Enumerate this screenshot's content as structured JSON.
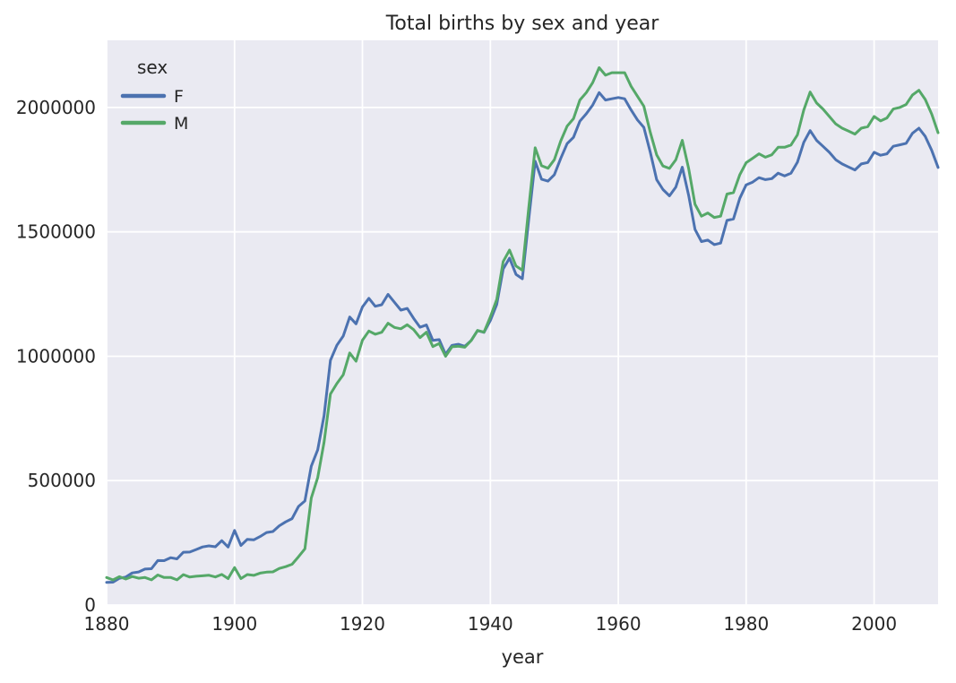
{
  "chart_data": {
    "type": "line",
    "title": "Total births by sex and year",
    "xlabel": "year",
    "ylabel": "",
    "legend": {
      "title": "sex",
      "position": "upper left"
    },
    "grid": true,
    "xlim": [
      1880,
      2010
    ],
    "ylim": [
      0,
      2270000
    ],
    "xticks": [
      1880,
      1900,
      1920,
      1940,
      1960,
      1980,
      2000
    ],
    "yticks": [
      0,
      500000,
      1000000,
      1500000,
      2000000
    ],
    "style": {
      "plot_bg": "#eaeaf2",
      "grid_color": "#ffffff",
      "fig_bg": "#ffffff",
      "text_color": "#262626",
      "f_color": "#4c72b0",
      "m_color": "#55a868"
    },
    "x": [
      1880,
      1881,
      1882,
      1883,
      1884,
      1885,
      1886,
      1887,
      1888,
      1889,
      1890,
      1891,
      1892,
      1893,
      1894,
      1895,
      1896,
      1897,
      1898,
      1899,
      1900,
      1901,
      1902,
      1903,
      1904,
      1905,
      1906,
      1907,
      1908,
      1909,
      1910,
      1911,
      1912,
      1913,
      1914,
      1915,
      1916,
      1917,
      1918,
      1919,
      1920,
      1921,
      1922,
      1923,
      1924,
      1925,
      1926,
      1927,
      1928,
      1929,
      1930,
      1931,
      1932,
      1933,
      1934,
      1935,
      1936,
      1937,
      1938,
      1939,
      1940,
      1941,
      1942,
      1943,
      1944,
      1945,
      1946,
      1947,
      1948,
      1949,
      1950,
      1951,
      1952,
      1953,
      1954,
      1955,
      1956,
      1957,
      1958,
      1959,
      1960,
      1961,
      1962,
      1963,
      1964,
      1965,
      1966,
      1967,
      1968,
      1969,
      1970,
      1971,
      1972,
      1973,
      1974,
      1975,
      1976,
      1977,
      1978,
      1979,
      1980,
      1981,
      1982,
      1983,
      1984,
      1985,
      1986,
      1987,
      1988,
      1989,
      1990,
      1991,
      1992,
      1993,
      1994,
      1995,
      1996,
      1997,
      1998,
      1999,
      2000,
      2001,
      2002,
      2003,
      2004,
      2005,
      2006,
      2007,
      2008,
      2009,
      2010
    ],
    "series": [
      {
        "name": "F",
        "color": "#4c72b0",
        "values": [
          90993,
          91955,
          107851,
          112322,
          129021,
          133056,
          144538,
          145983,
          178631,
          178369,
          190377,
          185486,
          212350,
          212908,
          222923,
          233632,
          237924,
          234198,
          258771,
          233023,
          299828,
          239348,
          264079,
          261971,
          275364,
          291619,
          295304,
          318558,
          334276,
          347191,
          396416,
          418180,
          557939,
          624111,
          761383,
          983824,
          1044249,
          1081194,
          1157585,
          1130149,
          1198214,
          1232845,
          1200796,
          1206921,
          1248821,
          1217223,
          1185390,
          1192216,
          1152685,
          1116691,
          1125521,
          1064132,
          1066786,
          1007728,
          1043999,
          1048264,
          1040023,
          1063526,
          1103359,
          1096158,
          1143737,
          1208193,
          1350893,
          1394536,
          1329373,
          1311459,
          1548954,
          1784000,
          1712000,
          1704000,
          1730000,
          1795000,
          1855000,
          1880000,
          1945000,
          1975000,
          2010000,
          2060000,
          2030000,
          2035000,
          2040000,
          2035000,
          1990000,
          1950000,
          1920000,
          1820000,
          1710000,
          1670000,
          1645000,
          1680000,
          1760000,
          1647000,
          1510000,
          1461000,
          1467000,
          1449000,
          1455000,
          1546000,
          1552000,
          1635000,
          1689000,
          1700000,
          1718000,
          1710000,
          1714000,
          1736000,
          1725000,
          1736000,
          1780000,
          1860000,
          1907000,
          1868000,
          1844000,
          1820000,
          1790000,
          1773000,
          1761000,
          1749000,
          1773000,
          1779000,
          1820000,
          1808000,
          1814000,
          1844000,
          1850000,
          1856000,
          1896468,
          1916888,
          1883645,
          1827643,
          1759010
        ]
      },
      {
        "name": "M",
        "color": "#55a868",
        "values": [
          110493,
          100748,
          113687,
          104632,
          114445,
          107802,
          110785,
          101412,
          120857,
          110590,
          111026,
          101198,
          122038,
          112319,
          115775,
          117398,
          119575,
          112758,
          122693,
          106212,
          150554,
          106471,
          122660,
          119234,
          128129,
          132319,
          133159,
          146838,
          154339,
          163983,
          194198,
          225936,
          429926,
          512482,
          654746,
          848158,
          890394,
          925708,
          1013119,
          980191,
          1064468,
          1101358,
          1088426,
          1096271,
          1132671,
          1115798,
          1110505,
          1126717,
          1107195,
          1074924,
          1096954,
          1038665,
          1051460,
          1000018,
          1038190,
          1040081,
          1036453,
          1063241,
          1103767,
          1096756,
          1158348,
          1227994,
          1380589,
          1426888,
          1362580,
          1345660,
          1595499,
          1838000,
          1766000,
          1756000,
          1790000,
          1865000,
          1925000,
          1955000,
          2030000,
          2060000,
          2100000,
          2160000,
          2130000,
          2140000,
          2140000,
          2140000,
          2085000,
          2045000,
          2005000,
          1900000,
          1810000,
          1765000,
          1755000,
          1790000,
          1868000,
          1755000,
          1611000,
          1563000,
          1576000,
          1558000,
          1563000,
          1652000,
          1658000,
          1730000,
          1778000,
          1796000,
          1814000,
          1800000,
          1810000,
          1840000,
          1840000,
          1849000,
          1890000,
          1990000,
          2062000,
          2018000,
          1994000,
          1964000,
          1934000,
          1917000,
          1905000,
          1893000,
          1917000,
          1923000,
          1964000,
          1946000,
          1958000,
          1994000,
          2000000,
          2012000,
          2050234,
          2069242,
          2032310,
          1973359,
          1898382
        ]
      }
    ]
  }
}
